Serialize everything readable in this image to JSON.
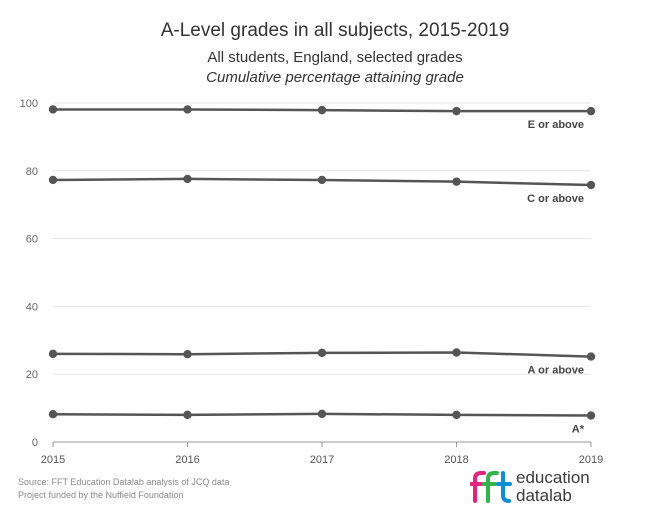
{
  "header": {
    "title": "A-Level grades in all subjects, 2015-2019",
    "subtitle": "All students, England, selected grades",
    "subtitle2": "Cumulative percentage attaining grade"
  },
  "footer": {
    "source_line1": "Source: FFT Education Datalab analysis of JCQ data",
    "source_line2": "Project funded by the Nuffield Foundation",
    "logo_mark": "fft",
    "logo_word1": "education",
    "logo_word2": "datalab"
  },
  "colors": {
    "series": "#555555",
    "grid": "#e6e6e6",
    "axis": "#999999",
    "logo_f1": "#e2257e",
    "logo_f2": "#33b44a",
    "logo_t": "#0f8fd1"
  },
  "chart_data": {
    "type": "line",
    "title": "A-Level grades in all subjects, 2015-2019",
    "subtitle": "All students, England, selected grades",
    "ylabel": "Cumulative percentage attaining grade",
    "x": [
      "2015",
      "2016",
      "2017",
      "2018",
      "2019"
    ],
    "ylim": [
      0,
      100
    ],
    "yticks": [
      0,
      20,
      40,
      60,
      80,
      100
    ],
    "grid": true,
    "series": [
      {
        "name": "E or above",
        "values": [
          98.1,
          98.1,
          97.9,
          97.6,
          97.6
        ]
      },
      {
        "name": "C or above",
        "values": [
          77.3,
          77.6,
          77.3,
          76.8,
          75.8
        ]
      },
      {
        "name": "A or above",
        "values": [
          26.0,
          25.9,
          26.3,
          26.4,
          25.2
        ]
      },
      {
        "name": "A*",
        "values": [
          8.2,
          8.0,
          8.3,
          8.0,
          7.8
        ]
      }
    ]
  }
}
